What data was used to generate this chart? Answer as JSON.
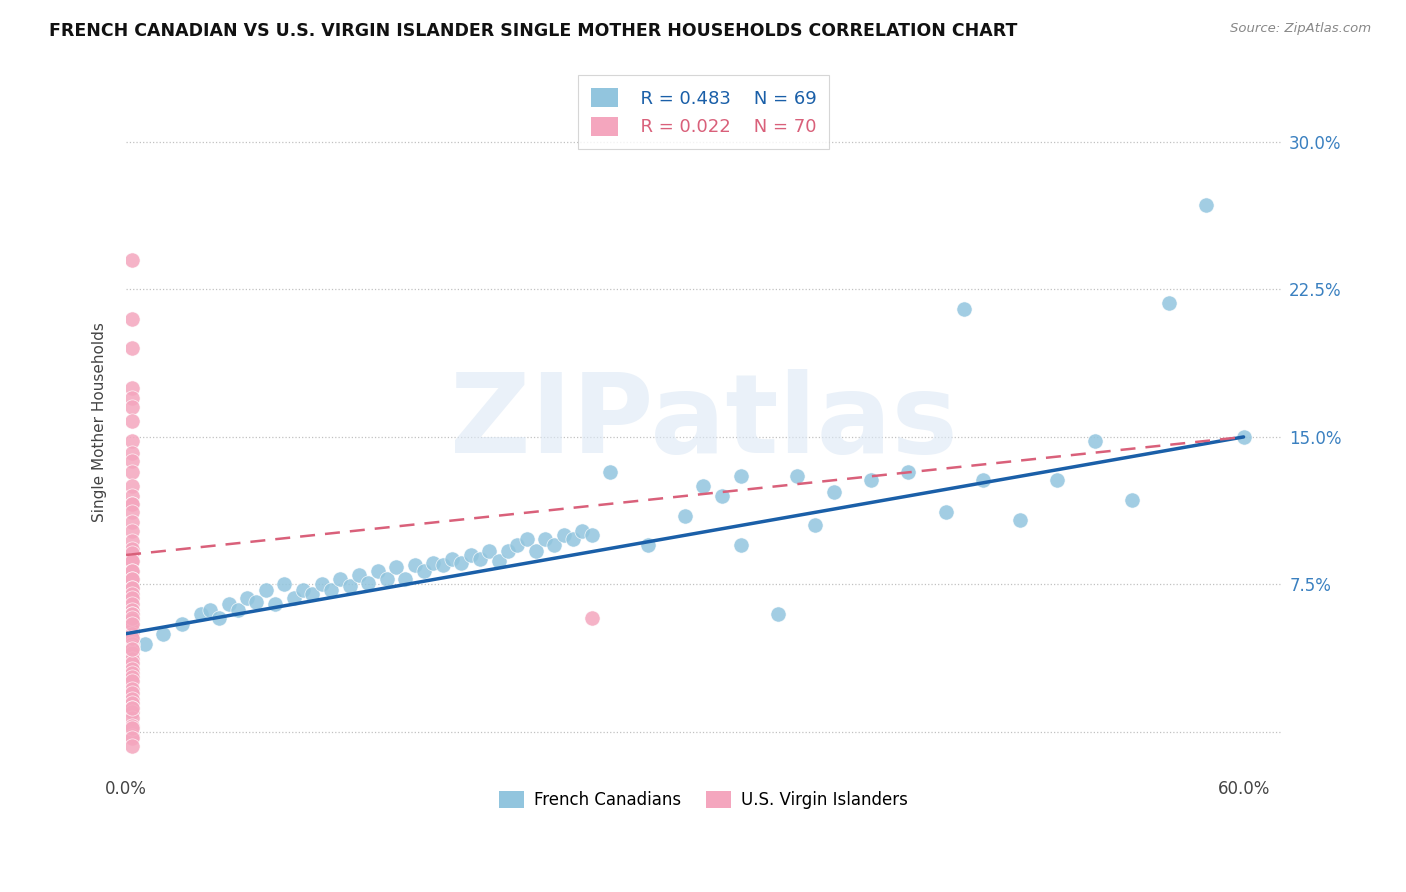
{
  "title": "FRENCH CANADIAN VS U.S. VIRGIN ISLANDER SINGLE MOTHER HOUSEHOLDS CORRELATION CHART",
  "source": "Source: ZipAtlas.com",
  "ylabel": "Single Mother Households",
  "xlim": [
    0.0,
    0.62
  ],
  "ylim": [
    -0.02,
    0.335
  ],
  "xtick_positions": [
    0.0,
    0.1,
    0.2,
    0.3,
    0.4,
    0.5,
    0.6
  ],
  "xticklabels": [
    "0.0%",
    "",
    "",
    "",
    "",
    "",
    "60.0%"
  ],
  "ytick_positions": [
    0.0,
    0.075,
    0.15,
    0.225,
    0.3
  ],
  "ytick_labels_right": [
    "",
    "7.5%",
    "15.0%",
    "22.5%",
    "30.0%"
  ],
  "legend_r1": "R = 0.483",
  "legend_n1": "N = 69",
  "legend_r2": "R = 0.022",
  "legend_n2": "N = 70",
  "blue_color": "#92c5de",
  "pink_color": "#f4a6be",
  "blue_line_color": "#1a5fa8",
  "pink_line_color": "#d9607a",
  "watermark_text": "ZIPatlas",
  "blue_scatter_x": [
    0.01,
    0.02,
    0.03,
    0.04,
    0.045,
    0.05,
    0.055,
    0.06,
    0.065,
    0.07,
    0.075,
    0.08,
    0.085,
    0.09,
    0.095,
    0.1,
    0.105,
    0.11,
    0.115,
    0.12,
    0.125,
    0.13,
    0.135,
    0.14,
    0.145,
    0.15,
    0.155,
    0.16,
    0.165,
    0.17,
    0.175,
    0.18,
    0.185,
    0.19,
    0.195,
    0.2,
    0.205,
    0.21,
    0.215,
    0.22,
    0.225,
    0.23,
    0.235,
    0.24,
    0.245,
    0.25,
    0.26,
    0.28,
    0.3,
    0.31,
    0.32,
    0.33,
    0.35,
    0.37,
    0.38,
    0.4,
    0.42,
    0.44,
    0.46,
    0.48,
    0.5,
    0.52,
    0.54,
    0.56,
    0.58,
    0.6,
    0.33,
    0.36,
    0.45
  ],
  "blue_scatter_y": [
    0.045,
    0.05,
    0.055,
    0.06,
    0.062,
    0.058,
    0.065,
    0.062,
    0.068,
    0.066,
    0.072,
    0.065,
    0.075,
    0.068,
    0.072,
    0.07,
    0.075,
    0.072,
    0.078,
    0.074,
    0.08,
    0.076,
    0.082,
    0.078,
    0.084,
    0.078,
    0.085,
    0.082,
    0.086,
    0.085,
    0.088,
    0.086,
    0.09,
    0.088,
    0.092,
    0.087,
    0.092,
    0.095,
    0.098,
    0.092,
    0.098,
    0.095,
    0.1,
    0.098,
    0.102,
    0.1,
    0.132,
    0.095,
    0.11,
    0.125,
    0.12,
    0.095,
    0.06,
    0.105,
    0.122,
    0.128,
    0.132,
    0.112,
    0.128,
    0.108,
    0.128,
    0.148,
    0.118,
    0.218,
    0.268,
    0.15,
    0.13,
    0.13,
    0.215
  ],
  "pink_scatter_x": [
    0.003,
    0.003,
    0.003,
    0.003,
    0.003,
    0.003,
    0.003,
    0.003,
    0.003,
    0.003,
    0.003,
    0.003,
    0.003,
    0.003,
    0.003,
    0.003,
    0.003,
    0.003,
    0.003,
    0.003,
    0.003,
    0.003,
    0.003,
    0.003,
    0.003,
    0.003,
    0.003,
    0.003,
    0.003,
    0.003,
    0.003,
    0.003,
    0.003,
    0.003,
    0.003,
    0.003,
    0.003,
    0.003,
    0.003,
    0.003,
    0.003,
    0.003,
    0.003,
    0.003,
    0.003,
    0.003,
    0.003,
    0.003,
    0.003,
    0.003,
    0.003,
    0.003,
    0.003,
    0.003,
    0.003,
    0.003,
    0.003,
    0.003,
    0.003,
    0.003,
    0.003,
    0.003,
    0.003,
    0.003,
    0.003,
    0.003,
    0.003,
    0.003,
    0.003,
    0.25
  ],
  "pink_scatter_y": [
    0.24,
    0.21,
    0.195,
    0.175,
    0.17,
    0.165,
    0.158,
    0.148,
    0.142,
    0.138,
    0.132,
    0.125,
    0.12,
    0.116,
    0.116,
    0.112,
    0.107,
    0.102,
    0.097,
    0.093,
    0.091,
    0.087,
    0.087,
    0.082,
    0.082,
    0.078,
    0.078,
    0.073,
    0.073,
    0.07,
    0.068,
    0.065,
    0.062,
    0.06,
    0.06,
    0.057,
    0.055,
    0.052,
    0.05,
    0.05,
    0.048,
    0.045,
    0.045,
    0.043,
    0.042,
    0.04,
    0.037,
    0.035,
    0.032,
    0.03,
    0.028,
    0.026,
    0.022,
    0.02,
    0.017,
    0.015,
    0.012,
    0.01,
    0.007,
    0.003,
    -0.002,
    0.002,
    -0.003,
    -0.007,
    0.058,
    0.055,
    0.048,
    0.042,
    0.012,
    0.058
  ]
}
